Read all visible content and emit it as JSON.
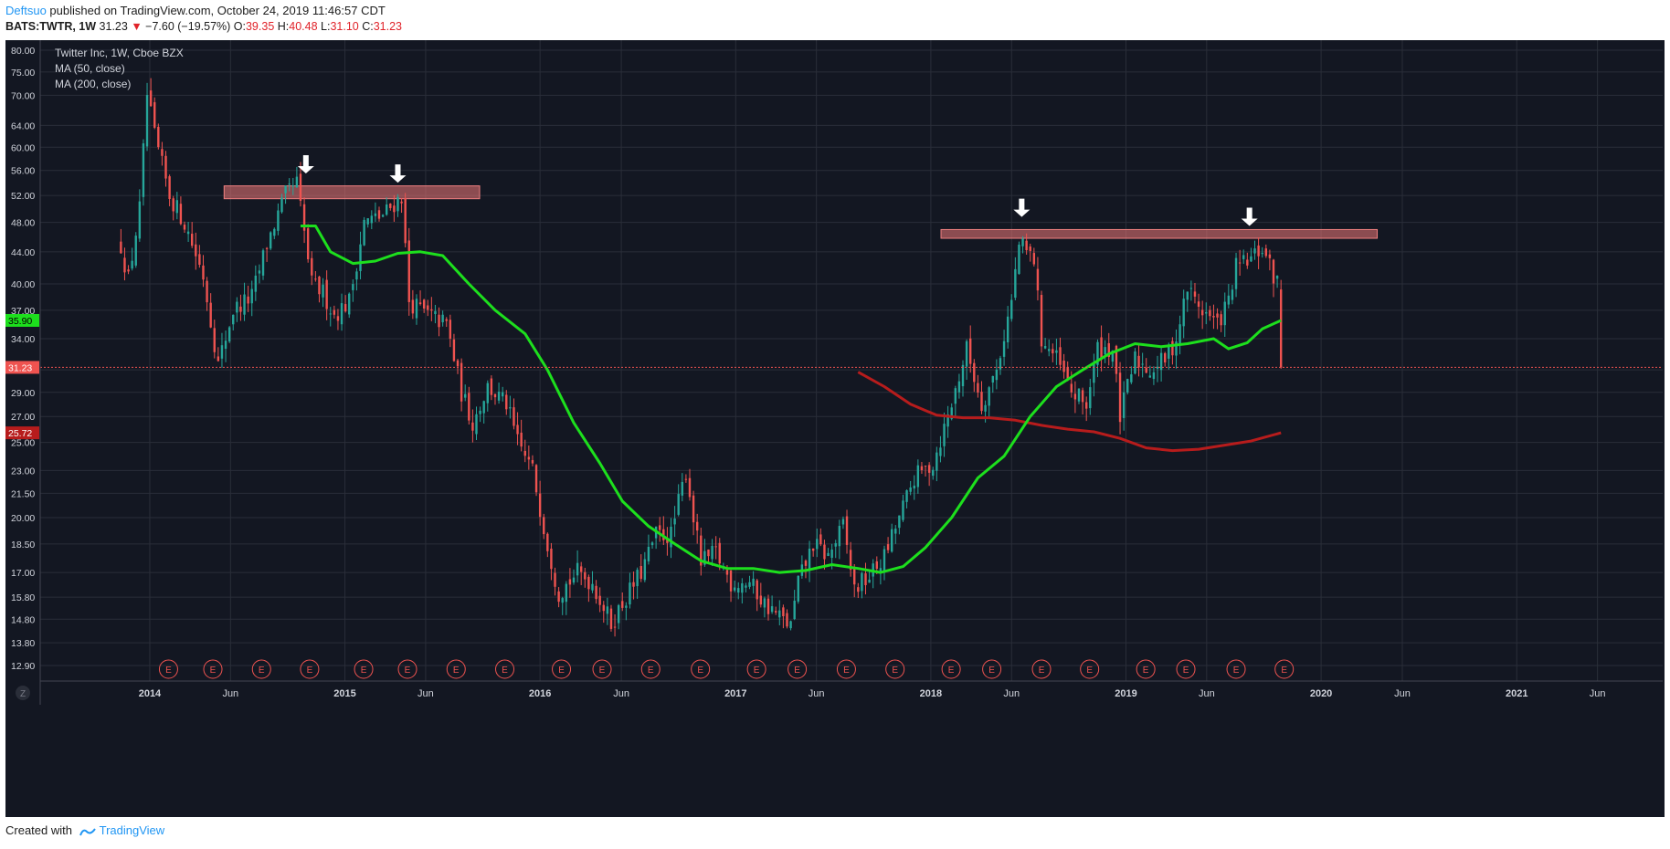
{
  "header": {
    "author": "Deftsuo",
    "published": " published on TradingView.com, October 24, 2019 11:46:57 CDT",
    "symbol": "BATS:TWTR, 1W",
    "last": "31.23",
    "change": "−7.60 (−19.57%)",
    "o_label": "O:",
    "o_val": "39.35",
    "h_label": "H:",
    "h_val": "40.48",
    "l_label": "L:",
    "l_val": "31.10",
    "c_label": "C:",
    "c_val": "31.23"
  },
  "legend": {
    "title": "Twitter Inc, 1W, Cboe BZX",
    "ma50": "MA (50, close)",
    "ma200": "MA (200, close)"
  },
  "footer": {
    "created": "Created with",
    "brand": "TradingView"
  },
  "colors": {
    "background": "#131722",
    "grid": "#2a2e39",
    "up": "#26a69a",
    "down": "#ef5350",
    "ma50": "#1ddf1d",
    "ma200": "#b71c1c",
    "zone": "#f0787880"
  },
  "chart_data": {
    "type": "candlestick",
    "timeframe": "1W",
    "price_scale": "log",
    "y_ticks": [
      80.0,
      75.0,
      70.0,
      64.0,
      60.0,
      56.0,
      52.0,
      48.0,
      44.0,
      40.0,
      37.0,
      34.0,
      31.0,
      29.0,
      27.0,
      25.0,
      23.0,
      21.5,
      20.0,
      18.5,
      17.0,
      15.8,
      14.8,
      13.8,
      12.9
    ],
    "y_tick_labels": [
      "80.00",
      "75.00",
      "70.00",
      "64.00",
      "60.00",
      "56.00",
      "52.00",
      "48.00",
      "44.00",
      "40.00",
      "37.00",
      "34.00",
      "31.00",
      "29.00",
      "27.00",
      "25.00",
      "23.00",
      "21.50",
      "20.00",
      "18.50",
      "17.00",
      "15.80",
      "14.80",
      "13.80",
      "12.90"
    ],
    "x_ticks": [
      {
        "label": "2014",
        "date": "2014-01-01"
      },
      {
        "label": "Jun",
        "date": "2014-06-01"
      },
      {
        "label": "2015",
        "date": "2015-01-01"
      },
      {
        "label": "Jun",
        "date": "2015-06-01"
      },
      {
        "label": "2016",
        "date": "2016-01-01"
      },
      {
        "label": "Jun",
        "date": "2016-06-01"
      },
      {
        "label": "2017",
        "date": "2017-01-01"
      },
      {
        "label": "Jun",
        "date": "2017-06-01"
      },
      {
        "label": "2018",
        "date": "2018-01-01"
      },
      {
        "label": "Jun",
        "date": "2018-06-01"
      },
      {
        "label": "2019",
        "date": "2019-01-01"
      },
      {
        "label": "Jun",
        "date": "2019-06-01"
      },
      {
        "label": "2020",
        "date": "2020-01-01"
      },
      {
        "label": "Jun",
        "date": "2020-06-01"
      },
      {
        "label": "2021",
        "date": "2021-01-01"
      },
      {
        "label": "Jun",
        "date": "2021-06-01"
      }
    ],
    "x_range": [
      "2013-06-10",
      "2021-10-01"
    ],
    "price_badges": [
      {
        "label": "35.90",
        "value": 35.9,
        "color": "#1ddf1d",
        "text_color": "#000000"
      },
      {
        "label": "31.23",
        "value": 31.23,
        "color": "#ef5350",
        "text_color": "#ffffff"
      },
      {
        "label": "25.72",
        "value": 25.72,
        "color": "#b71c1c",
        "text_color": "#ffffff"
      }
    ],
    "last_price": 31.23,
    "ohlc_key_points": [
      [
        "2013-11-08",
        44.9
      ],
      [
        "2013-11-22",
        40.5
      ],
      [
        "2013-12-13",
        50.0
      ],
      [
        "2013-12-27",
        70.0
      ],
      [
        "2014-01-10",
        62.0
      ],
      [
        "2014-02-07",
        52.0
      ],
      [
        "2014-03-07",
        48.0
      ],
      [
        "2014-04-11",
        41.0
      ],
      [
        "2014-05-09",
        31.5
      ],
      [
        "2014-06-06",
        37.0
      ],
      [
        "2014-07-11",
        38.5
      ],
      [
        "2014-08-08",
        45.0
      ],
      [
        "2014-09-12",
        52.0
      ],
      [
        "2014-10-03",
        54.0
      ],
      [
        "2014-10-31",
        40.0
      ],
      [
        "2014-11-21",
        39.0
      ],
      [
        "2014-12-12",
        36.5
      ],
      [
        "2015-01-09",
        38.0
      ],
      [
        "2015-02-06",
        48.0
      ],
      [
        "2015-03-13",
        49.0
      ],
      [
        "2015-04-17",
        52.0
      ],
      [
        "2015-05-01",
        38.0
      ],
      [
        "2015-06-05",
        36.5
      ],
      [
        "2015-07-10",
        35.5
      ],
      [
        "2015-08-07",
        29.0
      ],
      [
        "2015-08-28",
        26.5
      ],
      [
        "2015-09-25",
        29.5
      ],
      [
        "2015-10-30",
        28.0
      ],
      [
        "2015-11-20",
        25.0
      ],
      [
        "2015-12-18",
        23.0
      ],
      [
        "2016-01-15",
        18.5
      ],
      [
        "2016-02-05",
        16.0
      ],
      [
        "2016-03-11",
        17.0
      ],
      [
        "2016-04-08",
        16.5
      ],
      [
        "2016-05-13",
        14.6
      ],
      [
        "2016-06-03",
        15.5
      ],
      [
        "2016-07-08",
        17.0
      ],
      [
        "2016-08-05",
        19.0
      ],
      [
        "2016-09-02",
        19.0
      ],
      [
        "2016-09-30",
        23.0
      ],
      [
        "2016-10-28",
        17.5
      ],
      [
        "2016-11-25",
        18.0
      ],
      [
        "2016-12-23",
        16.5
      ],
      [
        "2017-01-27",
        16.5
      ],
      [
        "2017-02-24",
        15.5
      ],
      [
        "2017-03-24",
        14.9
      ],
      [
        "2017-04-14",
        14.5
      ],
      [
        "2017-04-28",
        16.5
      ],
      [
        "2017-05-26",
        18.5
      ],
      [
        "2017-06-23",
        17.8
      ],
      [
        "2017-07-21",
        19.5
      ],
      [
        "2017-08-11",
        16.2
      ],
      [
        "2017-09-08",
        16.8
      ],
      [
        "2017-10-06",
        17.8
      ],
      [
        "2017-11-03",
        20.0
      ],
      [
        "2017-12-01",
        22.5
      ],
      [
        "2018-01-05",
        23.5
      ],
      [
        "2018-02-09",
        28.0
      ],
      [
        "2018-03-09",
        33.0
      ],
      [
        "2018-04-06",
        28.0
      ],
      [
        "2018-05-04",
        31.0
      ],
      [
        "2018-06-01",
        38.0
      ],
      [
        "2018-06-15",
        45.0
      ],
      [
        "2018-07-13",
        43.0
      ],
      [
        "2018-07-27",
        34.0
      ],
      [
        "2018-08-24",
        32.0
      ],
      [
        "2018-09-21",
        29.0
      ],
      [
        "2018-10-19",
        28.0
      ],
      [
        "2018-11-09",
        33.0
      ],
      [
        "2018-12-07",
        33.0
      ],
      [
        "2018-12-21",
        27.0
      ],
      [
        "2019-01-18",
        32.0
      ],
      [
        "2019-02-15",
        31.0
      ],
      [
        "2019-03-15",
        32.0
      ],
      [
        "2019-04-05",
        34.0
      ],
      [
        "2019-04-26",
        39.5
      ],
      [
        "2019-05-24",
        37.0
      ],
      [
        "2019-06-21",
        35.5
      ],
      [
        "2019-07-12",
        38.0
      ],
      [
        "2019-07-26",
        42.0
      ],
      [
        "2019-08-23",
        43.0
      ],
      [
        "2019-09-13",
        44.5
      ],
      [
        "2019-10-04",
        41.0
      ],
      [
        "2019-10-18",
        39.4
      ],
      [
        "2019-10-24",
        31.23
      ]
    ],
    "ma50_key_points": [
      [
        "2014-10-10",
        47.5
      ],
      [
        "2014-11-07",
        47.5
      ],
      [
        "2014-12-05",
        44.0
      ],
      [
        "2015-01-16",
        42.5
      ],
      [
        "2015-02-27",
        42.8
      ],
      [
        "2015-04-10",
        43.8
      ],
      [
        "2015-05-22",
        44.0
      ],
      [
        "2015-07-03",
        43.5
      ],
      [
        "2015-08-21",
        40.0
      ],
      [
        "2015-10-09",
        37.0
      ],
      [
        "2015-12-04",
        34.5
      ],
      [
        "2016-01-15",
        31.0
      ],
      [
        "2016-03-04",
        26.5
      ],
      [
        "2016-04-22",
        23.5
      ],
      [
        "2016-06-03",
        21.0
      ],
      [
        "2016-07-22",
        19.5
      ],
      [
        "2016-09-09",
        18.5
      ],
      [
        "2016-10-28",
        17.6
      ],
      [
        "2016-12-16",
        17.2
      ],
      [
        "2017-02-03",
        17.2
      ],
      [
        "2017-03-24",
        17.0
      ],
      [
        "2017-05-12",
        17.1
      ],
      [
        "2017-06-30",
        17.4
      ],
      [
        "2017-08-18",
        17.2
      ],
      [
        "2017-09-29",
        17.0
      ],
      [
        "2017-11-10",
        17.3
      ],
      [
        "2017-12-22",
        18.3
      ],
      [
        "2018-02-09",
        20.0
      ],
      [
        "2018-03-30",
        22.5
      ],
      [
        "2018-05-18",
        24.0
      ],
      [
        "2018-07-06",
        27.0
      ],
      [
        "2018-08-24",
        29.5
      ],
      [
        "2018-10-12",
        31.0
      ],
      [
        "2018-11-30",
        32.5
      ],
      [
        "2019-01-18",
        33.5
      ],
      [
        "2019-03-08",
        33.2
      ],
      [
        "2019-04-26",
        33.5
      ],
      [
        "2019-06-14",
        34.0
      ],
      [
        "2019-07-12",
        33.0
      ],
      [
        "2019-08-16",
        33.6
      ],
      [
        "2019-09-13",
        35.0
      ],
      [
        "2019-10-18",
        35.9
      ]
    ],
    "ma200_key_points": [
      [
        "2017-08-18",
        30.8
      ],
      [
        "2017-10-06",
        29.5
      ],
      [
        "2017-11-24",
        28.0
      ],
      [
        "2018-01-12",
        27.1
      ],
      [
        "2018-03-02",
        26.9
      ],
      [
        "2018-04-20",
        26.9
      ],
      [
        "2018-06-08",
        26.7
      ],
      [
        "2018-07-27",
        26.3
      ],
      [
        "2018-09-14",
        26.0
      ],
      [
        "2018-11-02",
        25.8
      ],
      [
        "2018-12-21",
        25.3
      ],
      [
        "2019-02-08",
        24.6
      ],
      [
        "2019-03-29",
        24.4
      ],
      [
        "2019-05-17",
        24.5
      ],
      [
        "2019-07-05",
        24.8
      ],
      [
        "2019-08-23",
        25.1
      ],
      [
        "2019-10-18",
        25.72
      ]
    ],
    "resistance_zones": [
      {
        "from": "2014-05-20",
        "to": "2015-09-10",
        "low": 51.5,
        "high": 53.5
      },
      {
        "from": "2018-01-20",
        "to": "2020-04-15",
        "low": 45.8,
        "high": 47.0
      }
    ],
    "arrows": [
      {
        "date": "2014-10-20",
        "price": 55.5
      },
      {
        "date": "2015-04-10",
        "price": 54.0
      },
      {
        "date": "2018-06-20",
        "price": 48.8
      },
      {
        "date": "2019-08-20",
        "price": 47.5
      }
    ],
    "earnings": [
      "2014-02-05",
      "2014-04-29",
      "2014-07-29",
      "2014-10-27",
      "2015-02-05",
      "2015-04-28",
      "2015-07-28",
      "2015-10-27",
      "2016-02-10",
      "2016-04-26",
      "2016-07-26",
      "2016-10-27",
      "2017-02-09",
      "2017-04-26",
      "2017-07-27",
      "2017-10-26",
      "2018-02-08",
      "2018-04-25",
      "2018-07-27",
      "2018-10-25",
      "2019-02-07",
      "2019-04-23",
      "2019-07-26",
      "2019-10-24"
    ],
    "earnings_label": "E",
    "tz_button": "Z"
  }
}
